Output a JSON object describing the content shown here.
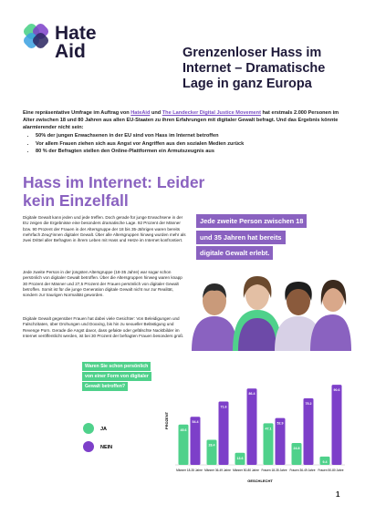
{
  "header": {
    "logo_line1": "Hate",
    "logo_line2": "Aid",
    "title": "Grenzenloser Hass im Internet – Dramatische Lage in ganz Europa"
  },
  "intro": {
    "text_before": "Eine repräsentative Umfrage im Auftrag von",
    "link1": "HateAid",
    "text_and": "und",
    "link2": "The Landecker Digital Justice Movement",
    "text_after": "hat erstmals 2.000 Personen im Alter zwischen 18 und 80 Jahren aus allen EU-Staaten zu ihren Erfahrungen mit digitaler Gewalt befragt. Und das Ergebnis könnte alarmierender nicht sein:",
    "bullets": [
      "50% der jungen Erwachsenen in der EU sind von Hass im Internet betroffen",
      "Vor allem Frauen ziehen sich aus Angst vor Angriffen aus den sozialen Medien zurück",
      "80 % der Befragten stellen den Online-Plattformen ein Armutszeugnis aus"
    ]
  },
  "section": {
    "heading": "Hass im Internet: Leider kein Einzelfall",
    "paragraphs": [
      "Digitale Gewalt kann jeden und jede treffen. Doch gerade für junge Erwachsene in der EU zeigen die Ergebnisse eine besonders dramatische Lage. 92 Prozent der Männer bzw. 90 Prozent der Frauen in der Altersgruppe der 18 bis 35-Jährigen waren bereits mehrfach Zeug*innen digitaler Gewalt. Über alle Altersgruppen hinweg wurden mehr als zwei Drittel aller Befragten in ihrem Leben mit Hass und Hetze im Internet konfrontiert.",
      "Jede zweite Person in der jüngsten Altersgruppe (18-35 Jahre) war sogar schon persönlich von digitaler Gewalt betroffen. Über die Altersgruppen hinweg waren knapp 30 Prozent der Männer und 27,5 Prozent der Frauen persönlich von digitaler Gewalt betroffen. Somit ist für die junge Generation digitale Gewalt nicht nur zur Realität, sondern zur traurigen Normalität geworden.",
      "Digitale Gewalt gegenüber Frauen hat dabei viele Gesichter: Von Beleidigungen und Falschzitaten, über Drohungen und Doxxing, bis hin zu sexueller Belästigung und Revenge Porn. Gerade die Angst davor, dass gefakte oder gefälschte Nacktbilder im Internet veröffentlicht werden, ist bei 30 Prozent der befragten Frauen besonders groß."
    ],
    "quote": "Jede zweite Person zwischen 18 und 35 Jahren hat bereits digitale Gewalt erlebt."
  },
  "chart_data": {
    "type": "bar",
    "title": "Waren Sie schon persönlich von einer Form von digitaler Gewalt betroffen?",
    "x_label": "GESCHLECHT",
    "y_label": "PROZENT",
    "categories": [
      "Männer 18-35 Jahre",
      "Männer 36-49 Jahre",
      "Männer 50-80 Jahre",
      "Frauen 18-35 Jahre",
      "Frauen 36-49 Jahre",
      "Frauen 50-80 Jahre"
    ],
    "series": [
      {
        "name": "JA",
        "color": "#4fd18b",
        "values": [
          45.6,
          28.4,
          13.6,
          47.1,
          24.8,
          9.4
        ]
      },
      {
        "name": "NEIN",
        "color": "#7d3fc9",
        "values": [
          54.4,
          71.6,
          86.4,
          52.9,
          75.2,
          90.6
        ]
      }
    ],
    "ylim": [
      0,
      100
    ],
    "legend": "left"
  },
  "footer": {
    "page_number": "1"
  }
}
